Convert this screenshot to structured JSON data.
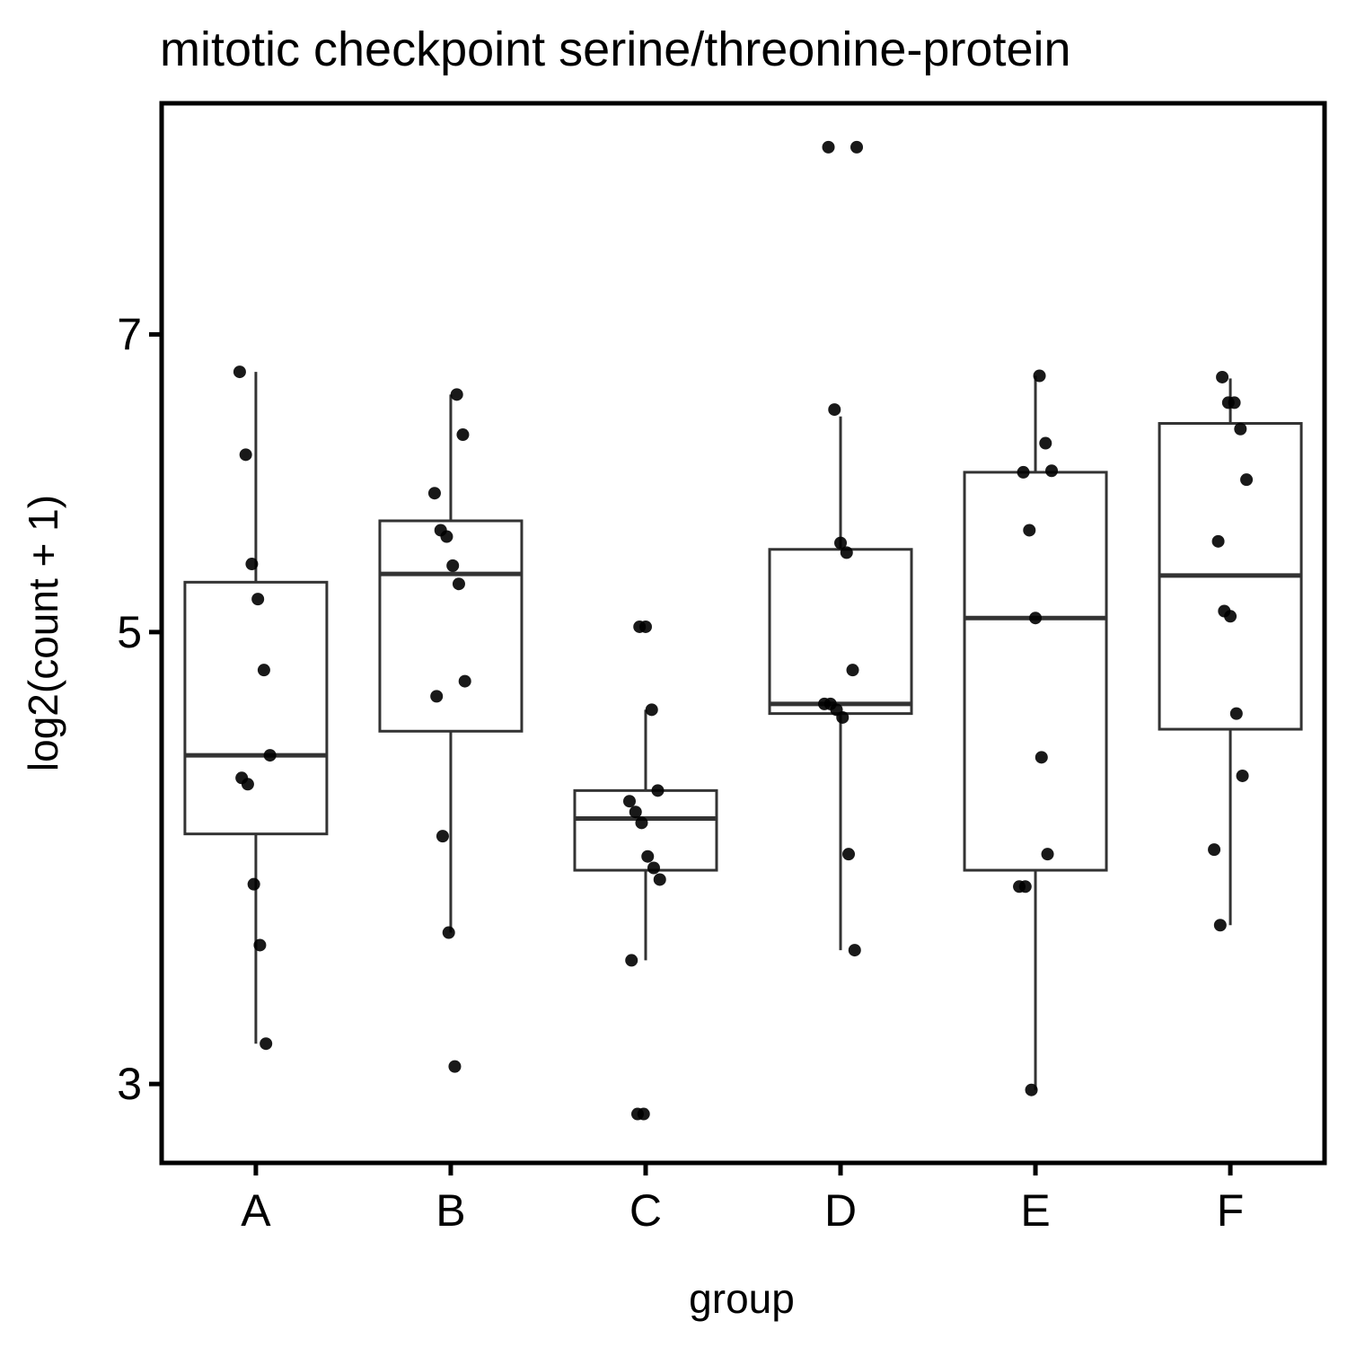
{
  "chart_data": {
    "type": "box",
    "title": "mitotic checkpoint serine/threonine-protein",
    "x_label": "group",
    "y_label": "log2(count + 1)",
    "y_scale": "log",
    "ylim": [
      2.744,
      9.09
    ],
    "yticks": [
      3,
      5,
      7
    ],
    "categories": [
      "A",
      "B",
      "C",
      "D",
      "E",
      "F"
    ],
    "boxes": [
      {
        "low": 3.14,
        "q1": 3.98,
        "median": 4.35,
        "q3": 5.29,
        "high": 6.71
      },
      {
        "low": 3.56,
        "q1": 4.47,
        "median": 5.34,
        "q3": 5.67,
        "high": 6.54
      },
      {
        "low": 3.45,
        "q1": 3.82,
        "median": 4.05,
        "q3": 4.18,
        "high": 4.58
      },
      {
        "low": 3.49,
        "q1": 4.56,
        "median": 4.61,
        "q3": 5.49,
        "high": 6.38
      },
      {
        "low": 2.98,
        "q1": 3.82,
        "median": 5.08,
        "q3": 5.99,
        "high": 6.68
      },
      {
        "low": 3.59,
        "q1": 4.48,
        "median": 5.33,
        "q3": 6.33,
        "high": 6.66
      }
    ],
    "points": [
      [
        6.71,
        6.11,
        5.4,
        5.19,
        4.79,
        4.35,
        4.24,
        4.21,
        3.76,
        3.51,
        3.14
      ],
      [
        6.54,
        6.25,
        5.85,
        5.61,
        5.57,
        5.39,
        5.28,
        4.73,
        4.65,
        3.97,
        3.56,
        3.06
      ],
      [
        5.03,
        5.03,
        4.58,
        4.18,
        4.13,
        4.08,
        4.03,
        3.88,
        3.83,
        3.78,
        3.45,
        2.9,
        2.9
      ],
      [
        8.65,
        8.65,
        6.43,
        5.53,
        5.47,
        4.79,
        4.61,
        4.61,
        4.58,
        4.54,
        3.89,
        3.49
      ],
      [
        6.68,
        6.19,
        6.0,
        5.99,
        5.61,
        5.08,
        4.34,
        3.89,
        3.75,
        3.75,
        2.98
      ],
      [
        6.67,
        6.48,
        6.48,
        6.29,
        5.94,
        5.54,
        5.12,
        5.09,
        4.56,
        4.25,
        3.91,
        3.59
      ]
    ]
  }
}
